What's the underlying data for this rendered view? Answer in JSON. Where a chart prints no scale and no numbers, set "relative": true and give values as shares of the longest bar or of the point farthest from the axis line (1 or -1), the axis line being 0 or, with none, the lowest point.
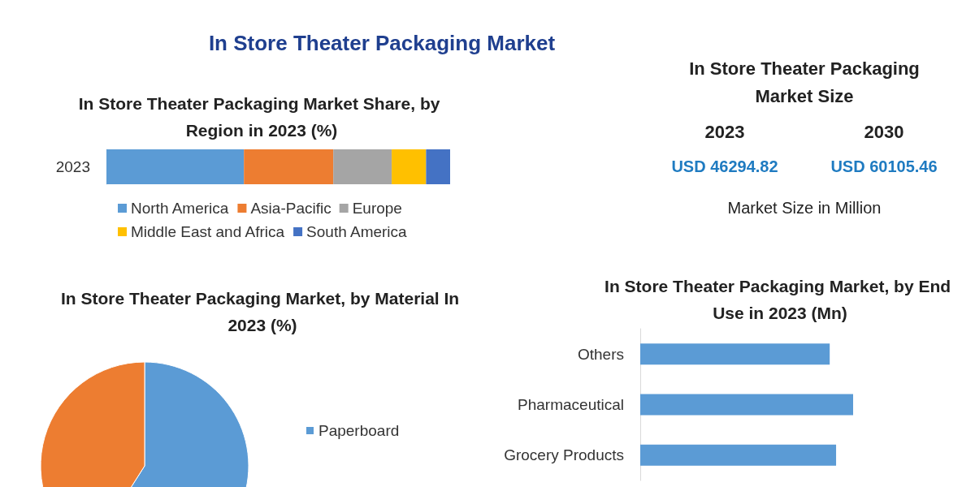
{
  "chart_data": [
    {
      "type": "other",
      "title": "In Store Theater Packaging Market"
    },
    {
      "type": "bar",
      "title": "In Store Theater Packaging Market Share, by Region in 2023 (%)",
      "orientation": "horizontal",
      "stacked": true,
      "relative": true,
      "legend": "bottom",
      "categories": [
        "2023"
      ],
      "series": [
        {
          "name": "North America",
          "color": "#5b9bd5",
          "values": [
            0.4
          ]
        },
        {
          "name": "Asia-Pacific",
          "color": "#ed7d31",
          "values": [
            0.26
          ]
        },
        {
          "name": "Europe",
          "color": "#a5a5a5",
          "values": [
            0.17
          ]
        },
        {
          "name": "Middle East and Africa",
          "color": "#ffc000",
          "values": [
            0.1
          ]
        },
        {
          "name": "South America",
          "color": "#4472c4",
          "values": [
            0.07
          ]
        }
      ]
    },
    {
      "type": "other",
      "title": "In Store Theater Packaging Market Size",
      "annotations": [
        "2023",
        "2030",
        "USD 46294.82",
        "USD 60105.46",
        "Market Size in Million"
      ]
    },
    {
      "type": "pie",
      "title": "In Store Theater Packaging Market, by Material In 2023 (%)",
      "legend": "right",
      "categories": [
        "Paperboard",
        null
      ],
      "values": [
        59,
        41
      ],
      "colors": [
        "#5b9bd5",
        "#ed7d31"
      ]
    },
    {
      "type": "bar",
      "title": "In Store Theater Packaging Market, by End Use in 2023 (Mn)",
      "orientation": "horizontal",
      "relative": true,
      "categories": [
        "Others",
        "Pharmaceutical",
        "Grocery Products"
      ],
      "values": [
        0.89,
        1,
        0.92
      ],
      "color": "#5b9bd5"
    }
  ]
}
